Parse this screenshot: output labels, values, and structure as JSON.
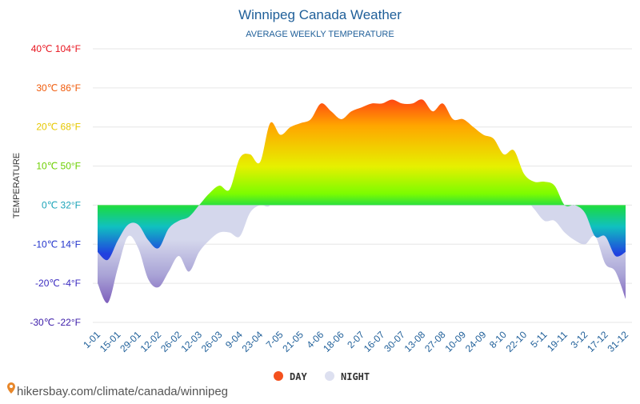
{
  "chart_data": {
    "type": "area",
    "title": "Winnipeg Canada Weather",
    "subtitle": "AVERAGE WEEKLY TEMPERATURE",
    "y_label": "TEMPERATURE",
    "footer": "hikersbay.com/climate/canada/winnipeg",
    "categories": [
      "1-01",
      null,
      "15-01",
      null,
      "29-01",
      null,
      "12-02",
      null,
      "26-02",
      null,
      "12-03",
      null,
      "26-03",
      null,
      "9-04",
      null,
      "23-04",
      null,
      "7-05",
      null,
      "21-05",
      null,
      "4-06",
      null,
      "18-06",
      null,
      "2-07",
      null,
      "16-07",
      null,
      "30-07",
      null,
      "13-08",
      null,
      "27-08",
      null,
      "10-09",
      null,
      "24-09",
      null,
      "8-10",
      null,
      "22-10",
      null,
      "5-11",
      null,
      "19-11",
      null,
      "3-12",
      null,
      "17-12",
      null,
      "31-12"
    ],
    "series": [
      {
        "name": "NIGHT",
        "color": "#dde0f0",
        "values": [
          -20,
          -25,
          -16,
          -8,
          -11,
          -19,
          -21,
          -17,
          -13,
          -17,
          -12,
          -9,
          -7,
          -7,
          -8,
          -2,
          0,
          0,
          6,
          5,
          4,
          10,
          9,
          12,
          12,
          11,
          13,
          13,
          15,
          14,
          15,
          13,
          13,
          13,
          12,
          13,
          12,
          10,
          9,
          8,
          7,
          3,
          2,
          -1,
          -4,
          -4,
          -7,
          -9,
          -10,
          -8,
          -15,
          -17,
          -24
        ]
      },
      {
        "name": "DAY",
        "color": "#f4511e",
        "values": [
          -12,
          -14,
          -9,
          -5,
          -5,
          -9,
          -11,
          -6,
          -4,
          -3,
          0,
          3,
          5,
          4,
          12,
          13,
          11,
          21,
          18,
          20,
          21,
          22,
          26,
          24,
          22,
          24,
          25,
          26,
          26,
          27,
          26,
          26,
          27,
          24,
          26,
          22,
          22,
          20,
          18,
          17,
          13,
          14,
          8,
          6,
          6,
          5,
          0,
          0,
          -2,
          -8,
          -8,
          -13,
          -12
        ]
      }
    ],
    "ylim": [
      -30,
      40
    ],
    "yticks": [
      {
        "value": -30,
        "label": "-30℃ -22°F"
      },
      {
        "value": -20,
        "label": "-20℃ -4°F"
      },
      {
        "value": -10,
        "label": "-10℃ 14°F"
      },
      {
        "value": 0,
        "label": "0℃ 32°F"
      },
      {
        "value": 10,
        "label": "10℃ 50°F"
      },
      {
        "value": 20,
        "label": "20℃ 68°F"
      },
      {
        "value": 30,
        "label": "30℃ 86°F"
      },
      {
        "value": 40,
        "label": "40℃ 104°F"
      }
    ],
    "grid": true
  }
}
